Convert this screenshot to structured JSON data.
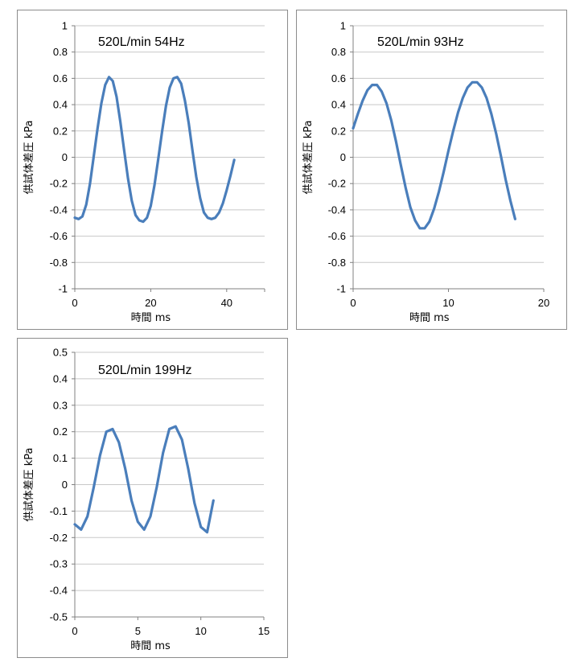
{
  "colors": {
    "series": "#4a7ebb",
    "grid": "#c8c8c8",
    "axis": "#808080",
    "border": "#8c8c8c"
  },
  "chart_data": [
    {
      "type": "line",
      "title": "520L/min 54Hz",
      "xlabel": "時間  ms",
      "ylabel": "供試体差圧 kPa",
      "xlim": [
        0,
        50
      ],
      "ylim": [
        -1,
        1
      ],
      "xticks": [
        0,
        20,
        40
      ],
      "yticks": [
        -1,
        -0.8,
        -0.6,
        -0.4,
        -0.2,
        0,
        0.2,
        0.4,
        0.6,
        0.8,
        1
      ],
      "grid": true,
      "series": [
        {
          "x": [
            0,
            1,
            2,
            3,
            4,
            5,
            6,
            7,
            8,
            9,
            10,
            11,
            12,
            13,
            14,
            15,
            16,
            17,
            18,
            19,
            20,
            21,
            22,
            23,
            24,
            25,
            26,
            27,
            28,
            29,
            30,
            31,
            32,
            33,
            34,
            35,
            36,
            37,
            38,
            39,
            40,
            41,
            42
          ],
          "y": [
            -0.46,
            -0.47,
            -0.45,
            -0.36,
            -0.2,
            0.01,
            0.22,
            0.41,
            0.55,
            0.61,
            0.58,
            0.46,
            0.27,
            0.05,
            -0.16,
            -0.33,
            -0.44,
            -0.48,
            -0.49,
            -0.46,
            -0.37,
            -0.21,
            -0.01,
            0.2,
            0.39,
            0.53,
            0.6,
            0.61,
            0.56,
            0.43,
            0.26,
            0.05,
            -0.15,
            -0.31,
            -0.42,
            -0.46,
            -0.47,
            -0.46,
            -0.42,
            -0.35,
            -0.25,
            -0.14,
            -0.02
          ]
        }
      ]
    },
    {
      "type": "line",
      "title": "520L/min 93Hz",
      "xlabel": "時間  ms",
      "ylabel": "供試体差圧 kPa",
      "xlim": [
        0,
        20
      ],
      "ylim": [
        -1,
        1
      ],
      "xticks": [
        0,
        10,
        20
      ],
      "yticks": [
        -1,
        -0.8,
        -0.6,
        -0.4,
        -0.2,
        0,
        0.2,
        0.4,
        0.6,
        0.8,
        1
      ],
      "grid": true,
      "series": [
        {
          "x": [
            0,
            0.5,
            1,
            1.5,
            2,
            2.5,
            3,
            3.5,
            4,
            4.5,
            5,
            5.5,
            6,
            6.5,
            7,
            7.5,
            8,
            8.5,
            9,
            9.5,
            10,
            10.5,
            11,
            11.5,
            12,
            12.5,
            13,
            13.5,
            14,
            14.5,
            15,
            15.5,
            16,
            16.5,
            17
          ],
          "y": [
            0.22,
            0.33,
            0.43,
            0.51,
            0.55,
            0.55,
            0.5,
            0.41,
            0.28,
            0.12,
            -0.06,
            -0.23,
            -0.38,
            -0.48,
            -0.54,
            -0.54,
            -0.49,
            -0.39,
            -0.26,
            -0.11,
            0.05,
            0.2,
            0.34,
            0.45,
            0.53,
            0.57,
            0.57,
            0.53,
            0.45,
            0.33,
            0.18,
            0.01,
            -0.17,
            -0.33,
            -0.47
          ]
        }
      ]
    },
    {
      "type": "line",
      "title": "520L/min 199Hz",
      "xlabel": "時間  ms",
      "ylabel": "供試体差圧 kPa",
      "xlim": [
        0,
        15
      ],
      "ylim": [
        -0.5,
        0.5
      ],
      "xticks": [
        0,
        5,
        10,
        15
      ],
      "yticks": [
        -0.5,
        -0.4,
        -0.3,
        -0.2,
        -0.1,
        0,
        0.1,
        0.2,
        0.3,
        0.4,
        0.5
      ],
      "grid": true,
      "series": [
        {
          "x": [
            0,
            0.5,
            1,
            1.5,
            2,
            2.5,
            3,
            3.5,
            4,
            4.5,
            5,
            5.5,
            6,
            6.5,
            7,
            7.5,
            8,
            8.5,
            9,
            9.5,
            10,
            10.5,
            11
          ],
          "y": [
            -0.15,
            -0.17,
            -0.12,
            -0.01,
            0.11,
            0.2,
            0.21,
            0.16,
            0.06,
            -0.06,
            -0.14,
            -0.17,
            -0.12,
            -0.01,
            0.12,
            0.21,
            0.22,
            0.17,
            0.06,
            -0.07,
            -0.16,
            -0.18,
            -0.06
          ]
        }
      ]
    }
  ]
}
